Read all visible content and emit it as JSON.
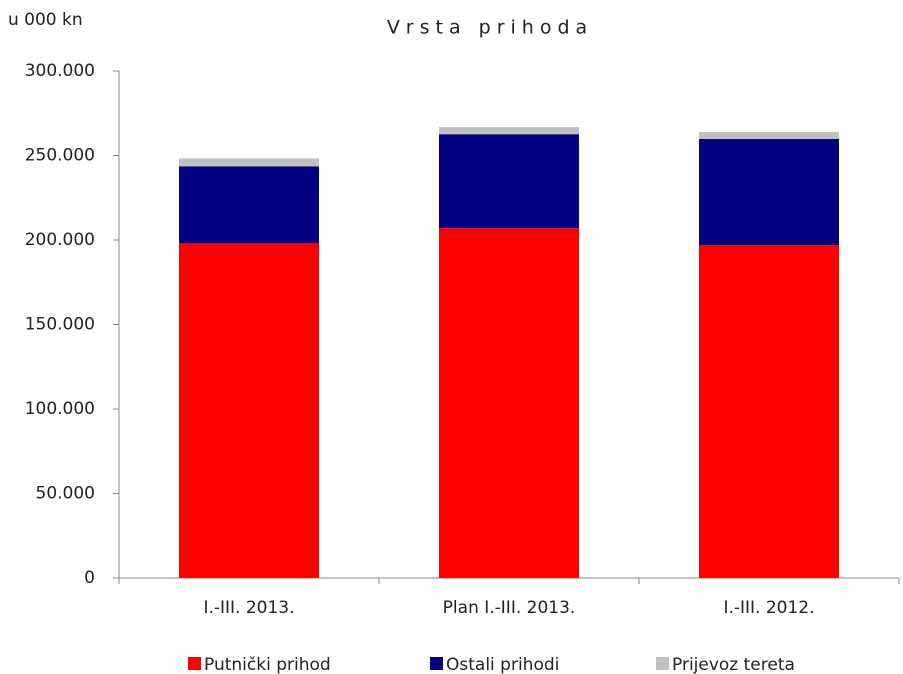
{
  "chart_data": {
    "type": "stacked_bar",
    "title": "Vrsta prihoda",
    "y_label": "u 000 kn",
    "categories": [
      "I.-III. 2013.",
      "Plan I.-III. 2013.",
      "I.-III. 2012."
    ],
    "series": [
      {
        "name": "Putnički prihod",
        "color": "#ff0000",
        "values": [
          198000,
          207000,
          197000
        ]
      },
      {
        "name": "Ostali prihodi",
        "color": "#000080",
        "values": [
          45600,
          55600,
          62800
        ]
      },
      {
        "name": "Prijevoz tereta",
        "color": "#c0c0c0",
        "values": [
          4700,
          4200,
          4100
        ]
      }
    ],
    "ylim": [
      0,
      300000
    ],
    "yticks": [
      0,
      {
        "value": 50000,
        "label": "50.000"
      },
      {
        "value": 100000,
        "label": "100.000"
      },
      {
        "value": 150000,
        "label": "150.000"
      },
      {
        "value": 200000,
        "label": "200.000"
      },
      {
        "value": 250000,
        "label": "250.000"
      },
      {
        "value": 300000,
        "label": "300.000"
      }
    ],
    "grid": false,
    "legend": "bottom"
  }
}
